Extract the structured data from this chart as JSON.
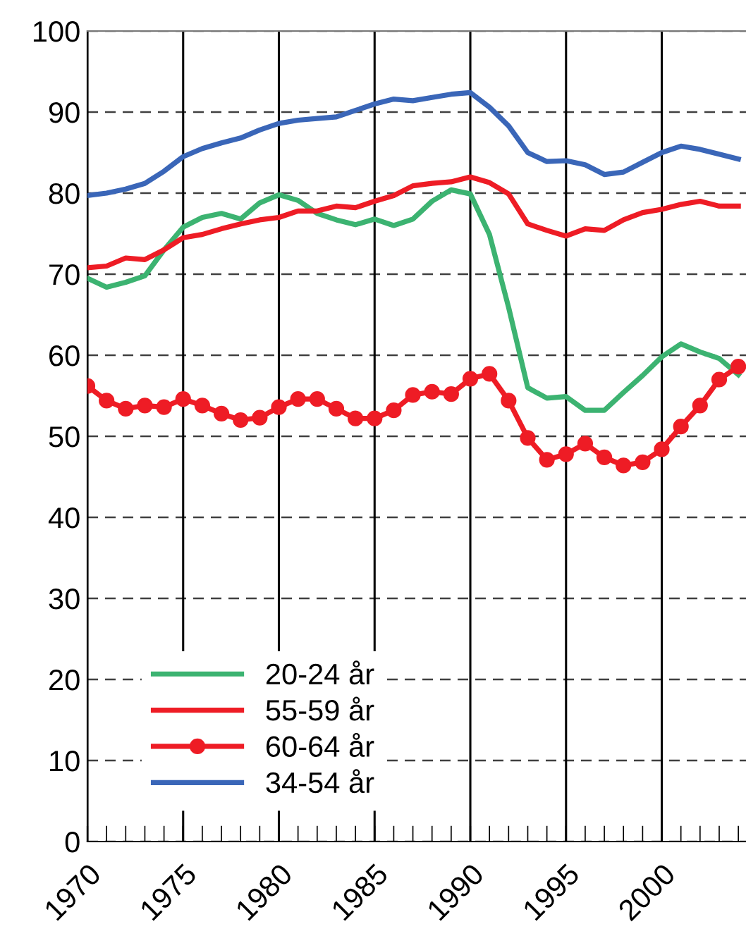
{
  "chart_data": {
    "type": "line",
    "x": [
      1970,
      1971,
      1972,
      1973,
      1974,
      1975,
      1976,
      1977,
      1978,
      1979,
      1980,
      1981,
      1982,
      1983,
      1984,
      1985,
      1986,
      1987,
      1988,
      1989,
      1990,
      1991,
      1992,
      1993,
      1994,
      1995,
      1996,
      1997,
      1998,
      1999,
      2000,
      2001,
      2002,
      2003,
      2004
    ],
    "series": [
      {
        "name": "20-24 år",
        "color": "#3cb371",
        "marker": "none",
        "values": [
          69.5,
          68.4,
          69.0,
          69.8,
          73.0,
          75.8,
          77.0,
          77.5,
          76.8,
          78.8,
          79.8,
          79.1,
          77.5,
          76.7,
          76.1,
          76.8,
          76.0,
          76.8,
          79.0,
          80.4,
          79.9,
          74.9,
          65.9,
          56.0,
          54.7,
          54.9,
          53.2,
          53.2,
          55.4,
          57.5,
          59.8,
          61.4,
          60.4,
          59.6,
          57.6
        ]
      },
      {
        "name": "55-59 år",
        "color": "#ee1c25",
        "marker": "none",
        "values": [
          70.8,
          71.0,
          72.0,
          71.8,
          73.0,
          74.5,
          74.9,
          75.6,
          76.2,
          76.7,
          77.0,
          77.8,
          77.8,
          78.4,
          78.2,
          79.0,
          79.7,
          80.9,
          81.2,
          81.4,
          82.0,
          81.3,
          79.9,
          76.2,
          75.4,
          74.7,
          75.6,
          75.4,
          76.7,
          77.6,
          78.0,
          78.6,
          79.0,
          78.4,
          78.4
        ]
      },
      {
        "name": "60-64 år",
        "color": "#ee1c25",
        "marker": "circle",
        "values": [
          56.2,
          54.4,
          53.4,
          53.8,
          53.6,
          54.6,
          53.8,
          52.8,
          52.0,
          52.3,
          53.6,
          54.6,
          54.6,
          53.4,
          52.2,
          52.2,
          53.2,
          55.1,
          55.5,
          55.2,
          57.1,
          57.7,
          54.4,
          49.8,
          47.1,
          47.8,
          49.1,
          47.4,
          46.4,
          46.8,
          48.4,
          51.2,
          53.8,
          57.0,
          58.6
        ]
      },
      {
        "name": "34-54 år",
        "color": "#3a66b8",
        "marker": "none",
        "values": [
          79.7,
          80.0,
          80.5,
          81.2,
          82.7,
          84.5,
          85.5,
          86.2,
          86.8,
          87.8,
          88.6,
          89.0,
          89.2,
          89.4,
          90.2,
          91.0,
          91.6,
          91.4,
          91.8,
          92.2,
          92.4,
          90.6,
          88.3,
          85.0,
          83.9,
          84.0,
          83.5,
          82.3,
          82.6,
          83.8,
          85.0,
          85.8,
          85.4,
          84.8,
          84.2
        ]
      }
    ],
    "xlim": [
      1970,
      2004.4
    ],
    "xticks": [
      1970,
      1975,
      1980,
      1985,
      1990,
      1995,
      2000
    ],
    "ylim": [
      0,
      100
    ],
    "yticks": [
      0,
      10,
      20,
      30,
      40,
      50,
      60,
      70,
      80,
      90,
      100
    ],
    "grid": true,
    "legend": "bottom left",
    "line_style": "solid"
  }
}
